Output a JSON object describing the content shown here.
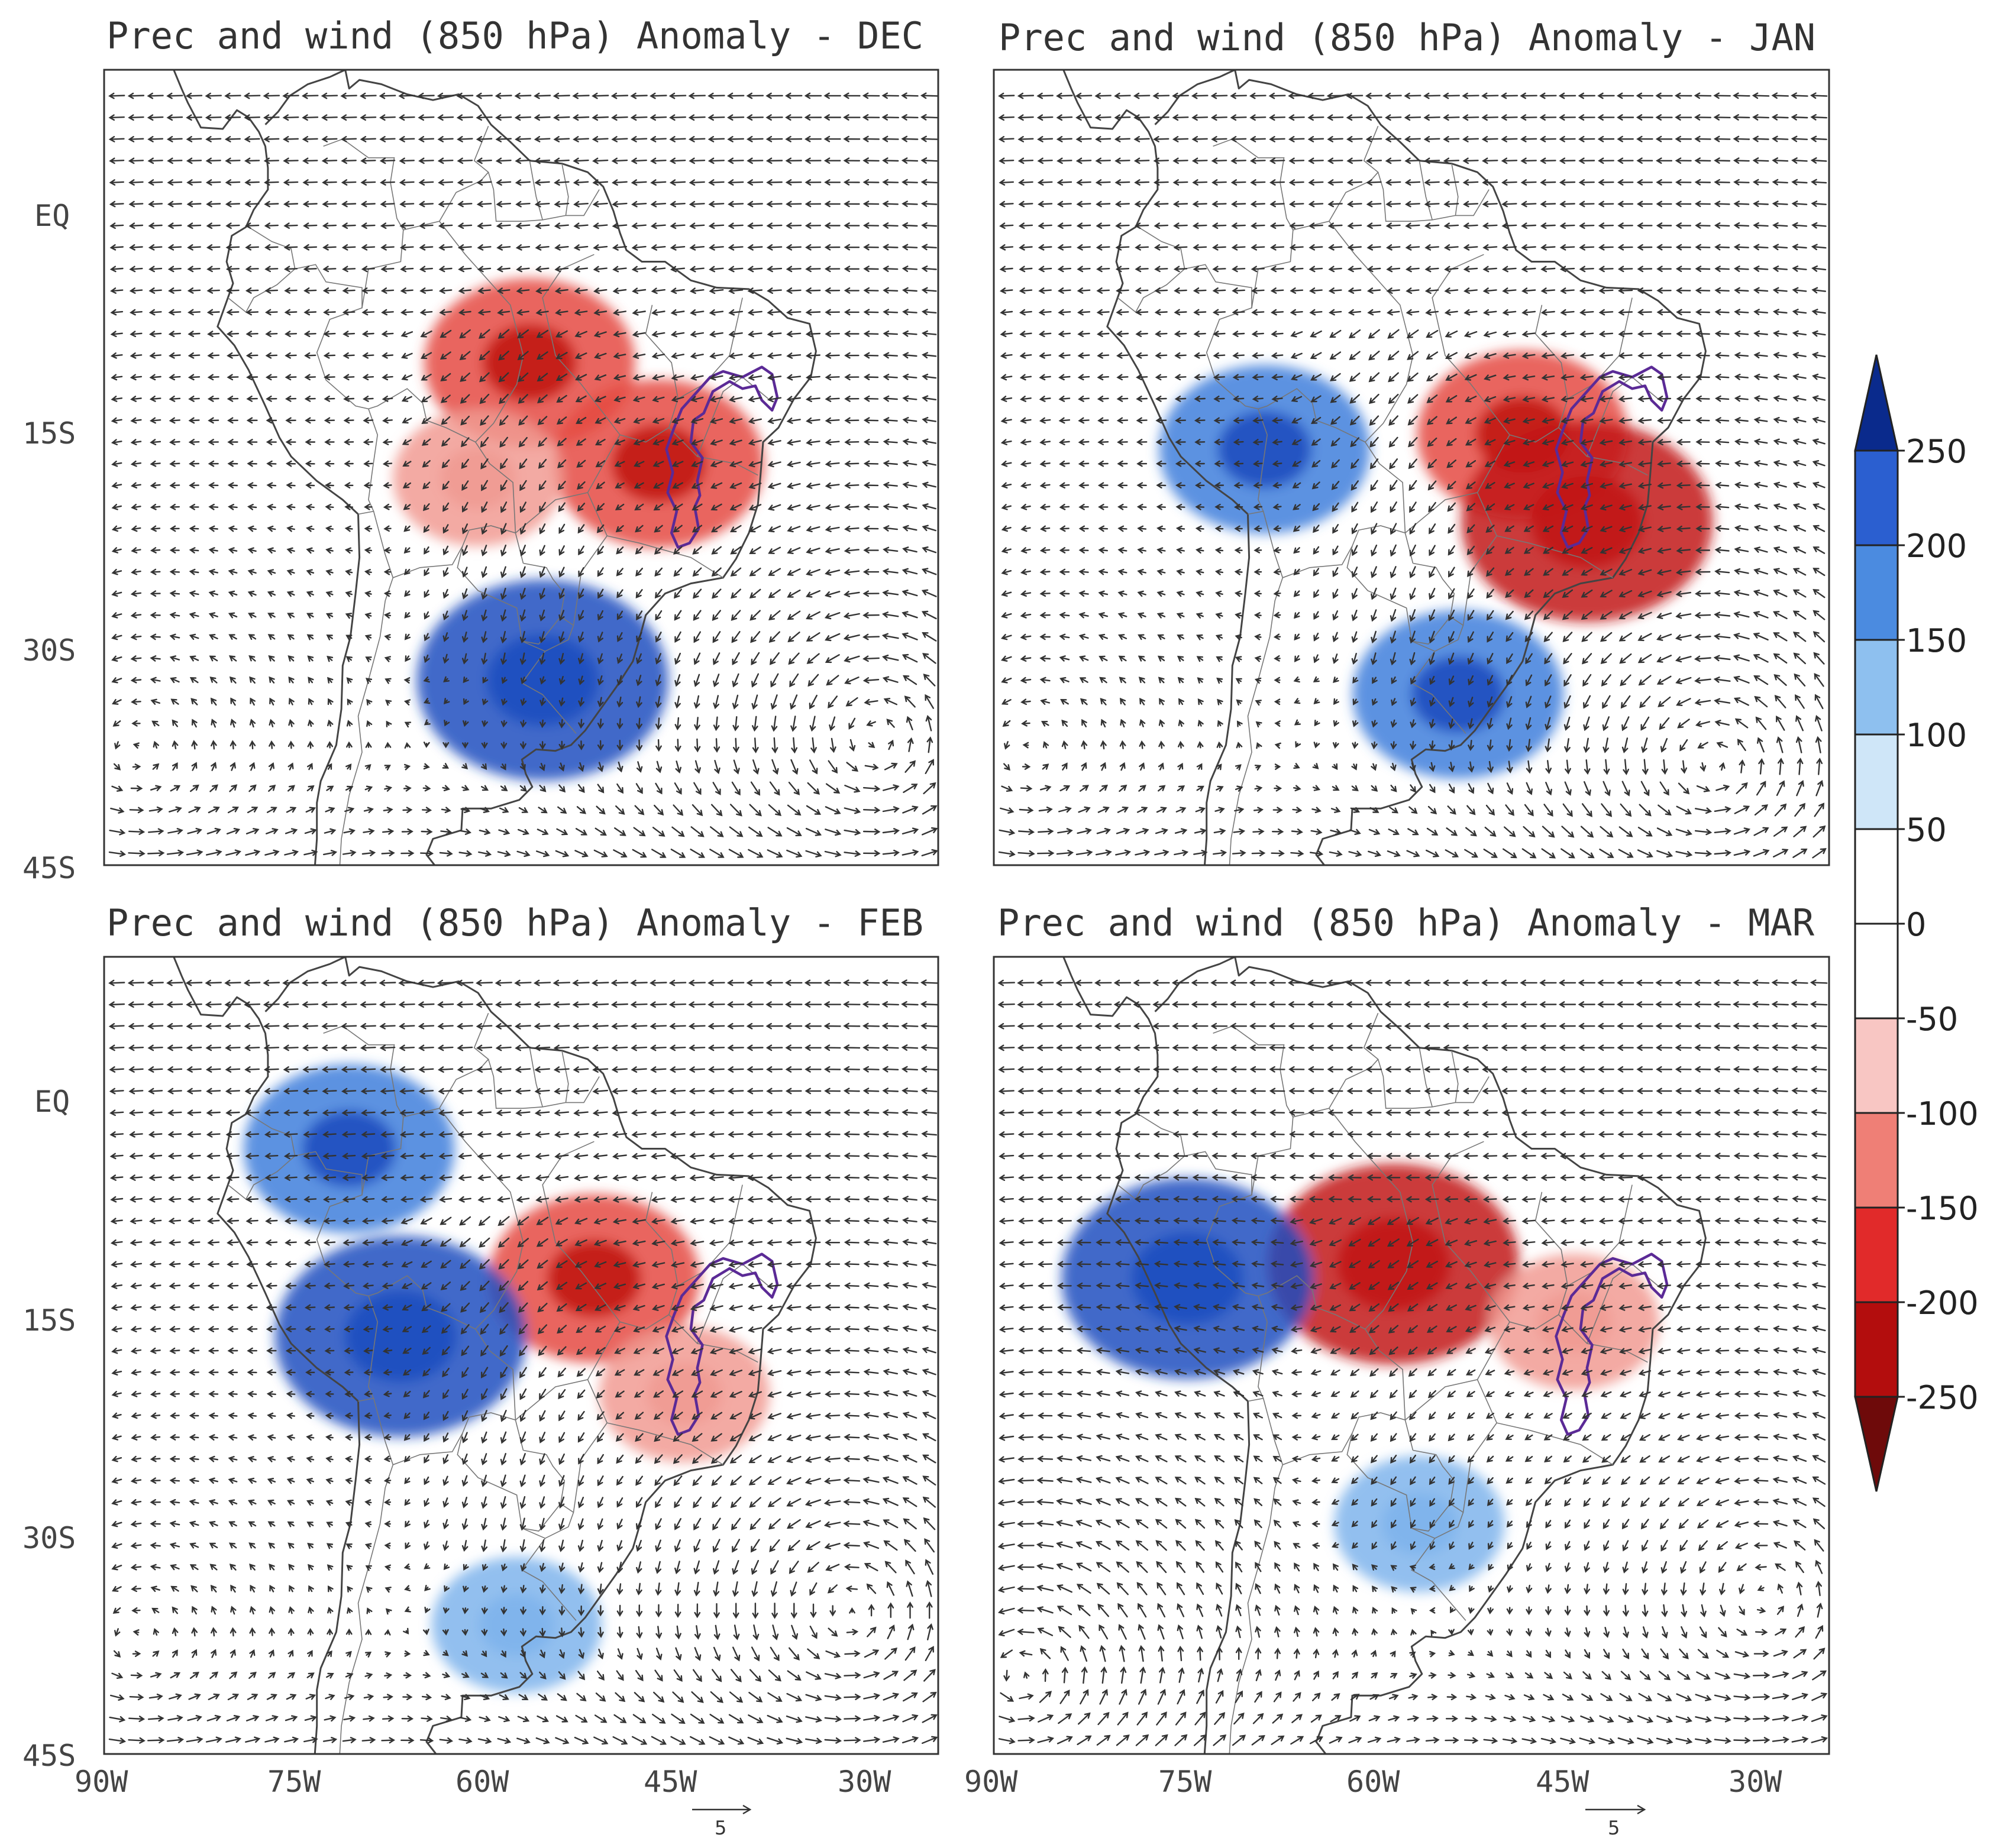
{
  "figure": {
    "panels": [
      {
        "id": "dec",
        "title": "Prec and wind (850 hPa) Anomaly - DEC",
        "lat_labels": [
          "EQ",
          "15S",
          "30S",
          "45S"
        ],
        "lon_labels": []
      },
      {
        "id": "jan",
        "title": "Prec and wind (850 hPa) Anomaly - JAN",
        "lat_labels": [],
        "lon_labels": []
      },
      {
        "id": "feb",
        "title": "Prec and wind (850 hPa) Anomaly - FEB",
        "lat_labels": [
          "EQ",
          "15S",
          "30S",
          "45S"
        ],
        "lon_labels": [
          "90W",
          "75W",
          "60W",
          "45W",
          "30W"
        ]
      },
      {
        "id": "mar",
        "title": "Prec and wind (850 hPa) Anomaly - MAR",
        "lat_labels": [],
        "lon_labels": [
          "90W",
          "75W",
          "60W",
          "45W",
          "30W"
        ]
      }
    ],
    "reference_vector": {
      "label": "5"
    },
    "colorbar": {
      "levels": [
        "250",
        "200",
        "150",
        "100",
        "50",
        "0",
        "-50",
        "-100",
        "-150",
        "-200",
        "-250"
      ],
      "colors": [
        "#0a2a8c",
        "#2b5fd0",
        "#4b8be0",
        "#8ec0ef",
        "#cfe6f8",
        "#ffffff",
        "#ffffff",
        "#f8c6c3",
        "#ef7f76",
        "#e12a2a",
        "#b30d0d",
        "#6e0a0a"
      ]
    }
  },
  "chart_data": {
    "type": "map",
    "variable": "Prec and wind (850 hPa) Anomaly",
    "months": [
      "DEC",
      "JAN",
      "FEB",
      "MAR"
    ],
    "lon_range": [
      "90W",
      "25W"
    ],
    "lat_range": [
      "45S",
      "12N"
    ],
    "colorbar_levels": [
      -250,
      -200,
      -150,
      -100,
      -50,
      0,
      50,
      100,
      150,
      200,
      250
    ],
    "anomaly_regions": {
      "DEC": [
        {
          "sign": "negative",
          "level": -150,
          "lon": -57,
          "lat": -8
        },
        {
          "sign": "negative",
          "level": -150,
          "lon": -47,
          "lat": -15
        },
        {
          "sign": "negative",
          "level": -100,
          "lon": -61,
          "lat": -16
        },
        {
          "sign": "positive",
          "level": 200,
          "lon": -56,
          "lat": -30
        }
      ],
      "JAN": [
        {
          "sign": "negative",
          "level": -150,
          "lon": -49,
          "lat": -13
        },
        {
          "sign": "negative",
          "level": -200,
          "lon": -44,
          "lat": -19
        },
        {
          "sign": "positive",
          "level": 150,
          "lon": -69,
          "lat": -14
        },
        {
          "sign": "positive",
          "level": 150,
          "lon": -54,
          "lat": -31
        }
      ],
      "FEB": [
        {
          "sign": "negative",
          "level": -150,
          "lon": -52,
          "lat": -10
        },
        {
          "sign": "negative",
          "level": -100,
          "lon": -45,
          "lat": -18
        },
        {
          "sign": "positive",
          "level": 200,
          "lon": -67,
          "lat": -14
        },
        {
          "sign": "positive",
          "level": 150,
          "lon": -71,
          "lat": -1
        },
        {
          "sign": "positive",
          "level": 100,
          "lon": -58,
          "lat": -34
        }
      ],
      "MAR": [
        {
          "sign": "negative",
          "level": -200,
          "lon": -59,
          "lat": -9
        },
        {
          "sign": "negative",
          "level": -100,
          "lon": -45,
          "lat": -13
        },
        {
          "sign": "positive",
          "level": 200,
          "lon": -75,
          "lat": -10
        },
        {
          "sign": "positive",
          "level": 100,
          "lon": -57,
          "lat": -27
        }
      ]
    }
  }
}
